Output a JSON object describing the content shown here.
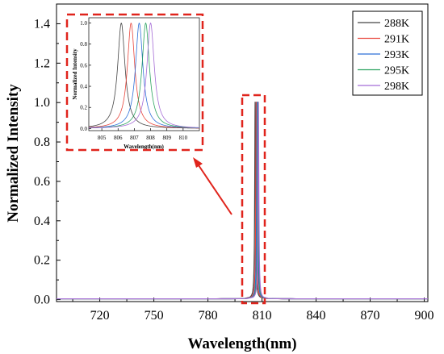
{
  "chart_data": [
    {
      "type": "line",
      "role": "main",
      "xlabel": "Wavelength(nm)",
      "ylabel": "Normalized Intensity",
      "xlim": [
        696,
        902
      ],
      "ylim": [
        -0.01,
        1.5
      ],
      "xticks": [
        "720",
        "750",
        "780",
        "810",
        "840",
        "870",
        "900"
      ],
      "yticks": [
        "0.0",
        "0.2",
        "0.4",
        "0.6",
        "0.8",
        "1.0",
        "1.2",
        "1.4"
      ],
      "legend_placement": "top-right",
      "series": [
        {
          "name": "288K",
          "color": "#444444",
          "peak": 806.2,
          "fwhm": 0.55
        },
        {
          "name": "291K",
          "color": "#e8443a",
          "peak": 806.8,
          "fwhm": 0.55
        },
        {
          "name": "293K",
          "color": "#2e6fd8",
          "peak": 807.3,
          "fwhm": 0.55
        },
        {
          "name": "295K",
          "color": "#2ba35f",
          "peak": 807.7,
          "fwhm": 0.55
        },
        {
          "name": "298K",
          "color": "#a56cd6",
          "peak": 808.0,
          "fwhm": 0.55
        }
      ],
      "highlight_range": [
        803,
        811
      ]
    },
    {
      "type": "line",
      "role": "inset",
      "xlabel": "Wavelength(nm)",
      "ylabel": "Normalized Intensity",
      "xlim": [
        804.2,
        811
      ],
      "ylim": [
        -0.02,
        1.05
      ],
      "xticks": [
        "805",
        "806",
        "807",
        "808",
        "809",
        "810"
      ],
      "yticks": [
        "0.0",
        "0.2",
        "0.4",
        "0.6",
        "0.8",
        "1.0"
      ]
    }
  ],
  "colors": {
    "highlight": "#e0241c"
  }
}
